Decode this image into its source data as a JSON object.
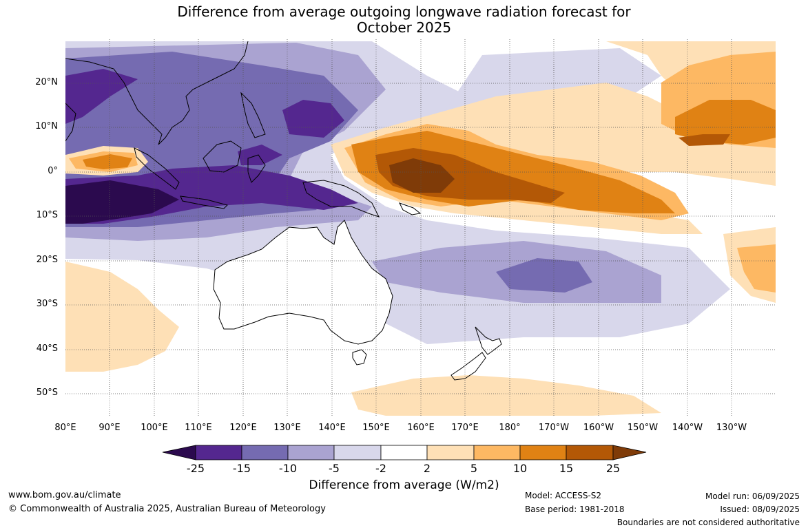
{
  "title_line1": "Difference from average outgoing longwave radiation forecast for",
  "title_line2": "October 2025",
  "lat_labels": [
    "20°N",
    "10°N",
    "0°",
    "10°S",
    "20°S",
    "30°S",
    "40°S",
    "50°S"
  ],
  "lon_labels": [
    "80°E",
    "90°E",
    "100°E",
    "110°E",
    "120°E",
    "130°E",
    "140°E",
    "150°E",
    "160°E",
    "170°E",
    "180°",
    "170°W",
    "160°W",
    "150°W",
    "140°W",
    "130°W"
  ],
  "colorbar": {
    "ticks": [
      "-25",
      "-15",
      "-10",
      "-5",
      "-2",
      "2",
      "5",
      "10",
      "15",
      "25"
    ],
    "colors": [
      "#2b0a4e",
      "#54278f",
      "#756bb1",
      "#aaa3d1",
      "#d8d7eb",
      "#ffffff",
      "#fee0b6",
      "#fdb863",
      "#e08214",
      "#b35806",
      "#7f3b08"
    ],
    "label": "Difference from average (W/m2)"
  },
  "footer": {
    "url": "www.bom.gov.au/climate",
    "copyright": "© Commonwealth of Australia 2025, Australian Bureau of Meteorology",
    "model": "Model: ACCESS-S2",
    "base_period": "Base period: 1981-2018",
    "model_run": "Model run: 06/09/2025",
    "issued": "Issued: 08/09/2025",
    "disclaimer": "Boundaries are not considered authoritative"
  }
}
